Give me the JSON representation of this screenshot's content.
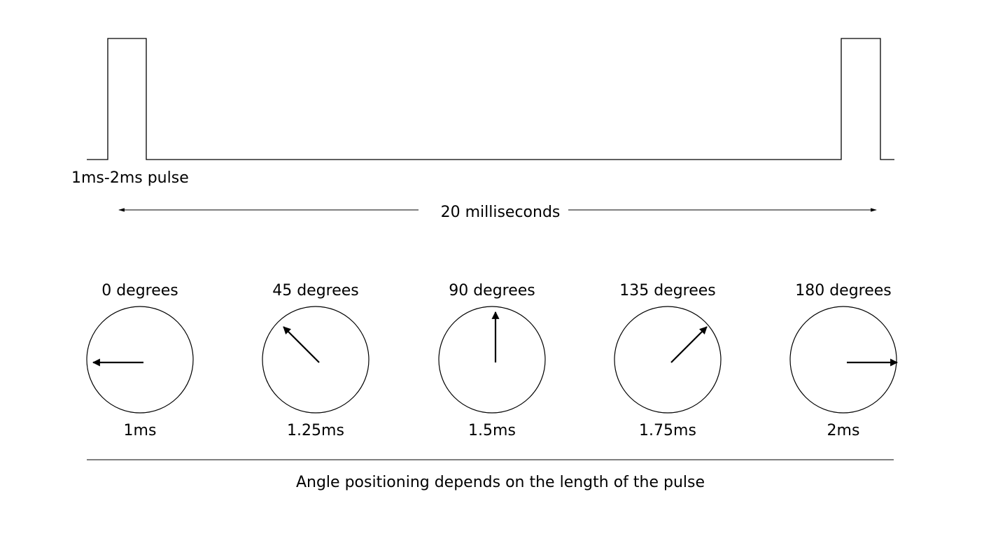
{
  "waveform": {
    "pulse_label": "1ms-2ms pulse",
    "period_label": "20 milliseconds"
  },
  "dials": [
    {
      "angle_label": "0 degrees",
      "pulse_label": "1ms",
      "angle_deg": 0
    },
    {
      "angle_label": "45 degrees",
      "pulse_label": "1.25ms",
      "angle_deg": 45
    },
    {
      "angle_label": "90 degrees",
      "pulse_label": "1.5ms",
      "angle_deg": 90
    },
    {
      "angle_label": "135 degrees",
      "pulse_label": "1.75ms",
      "angle_deg": 135
    },
    {
      "angle_label": "180 degrees",
      "pulse_label": "2ms",
      "angle_deg": 180
    }
  ],
  "caption": "Angle positioning depends on the length of the pulse",
  "colors": {
    "line": "#000000",
    "background": "#ffffff"
  }
}
